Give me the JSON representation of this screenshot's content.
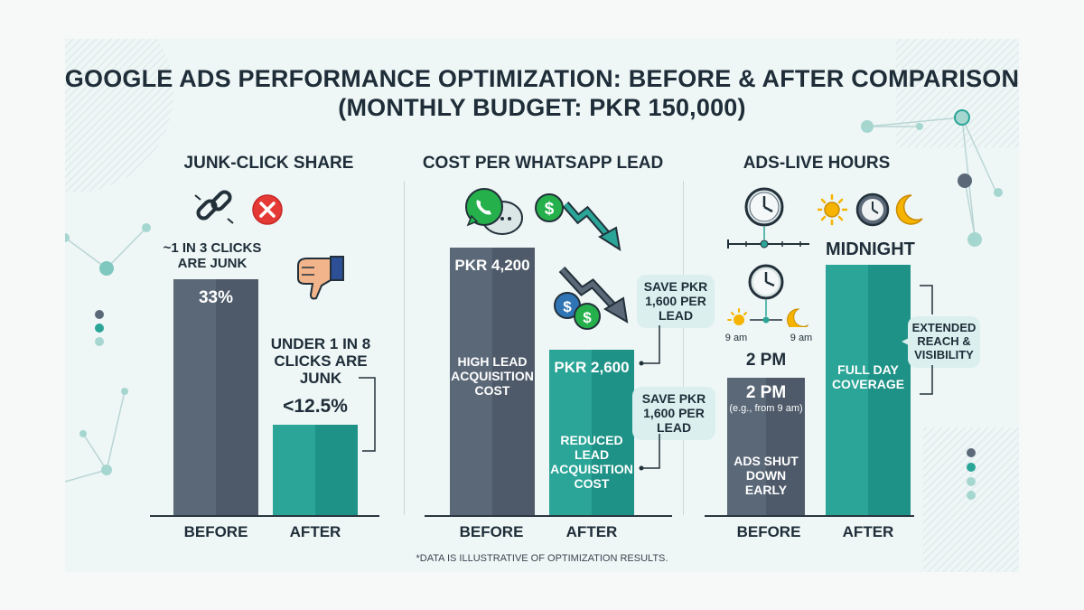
{
  "header": {
    "title_line1": "GOOGLE ADS PERFORMANCE OPTIMIZATION: BEFORE & AFTER COMPARISON",
    "title_line2": "(MONTHLY BUDGET: PKR 150,000)"
  },
  "colors": {
    "before": "#5b6878",
    "before_shade": "#4e5a69",
    "after": "#2aa597",
    "after_shade": "#1e9287",
    "accent_red": "#e53935",
    "background": "#eef6f6"
  },
  "chart_data": [
    {
      "type": "bar",
      "title": "JUNK-CLICK SHARE",
      "categories": [
        "BEFORE",
        "AFTER"
      ],
      "values": [
        33,
        12.5
      ],
      "value_labels": [
        "33%",
        "<12.5%"
      ],
      "annotations": {
        "before": "~1 IN 3 CLICKS ARE JUNK",
        "after": "UNDER 1 IN 8 CLICKS ARE JUNK"
      },
      "icons": [
        "broken-link-icon",
        "red-x-icon",
        "thumbs-down-icon"
      ]
    },
    {
      "type": "bar",
      "title": "COST PER WHATSAPP LEAD",
      "categories": [
        "BEFORE",
        "AFTER"
      ],
      "values": [
        4200,
        2600
      ],
      "value_labels": [
        "PKR 4,200",
        "PKR 2,600"
      ],
      "inner_labels": [
        "HIGH LEAD ACQUISITION COST",
        "REDUCED LEAD ACQUISITION COST"
      ],
      "callouts": [
        "SAVE PKR 1,600 PER LEAD",
        "SAVE PKR 1,600 PER LEAD"
      ],
      "icons": [
        "whatsapp-icon",
        "dollar-coin-icon",
        "down-trend-arrow-icon"
      ]
    },
    {
      "type": "bar",
      "title": "ADS-LIVE HOURS",
      "categories": [
        "BEFORE",
        "AFTER"
      ],
      "value_labels": [
        "2 PM",
        "MIDNIGHT"
      ],
      "inner_labels": [
        "2 PM",
        "(e.g., from 9 am)",
        "ADS SHUT DOWN EARLY",
        "FULL DAY COVERAGE"
      ],
      "start_time_labels": [
        "9 am",
        "9 am"
      ],
      "callout": "EXTENDED REACH & VISIBILITY",
      "icons": [
        "clock-icon",
        "sun-icon",
        "moon-icon"
      ]
    }
  ],
  "footnote": "*DATA IS ILLUSTRATIVE OF OPTIMIZATION RESULTS."
}
